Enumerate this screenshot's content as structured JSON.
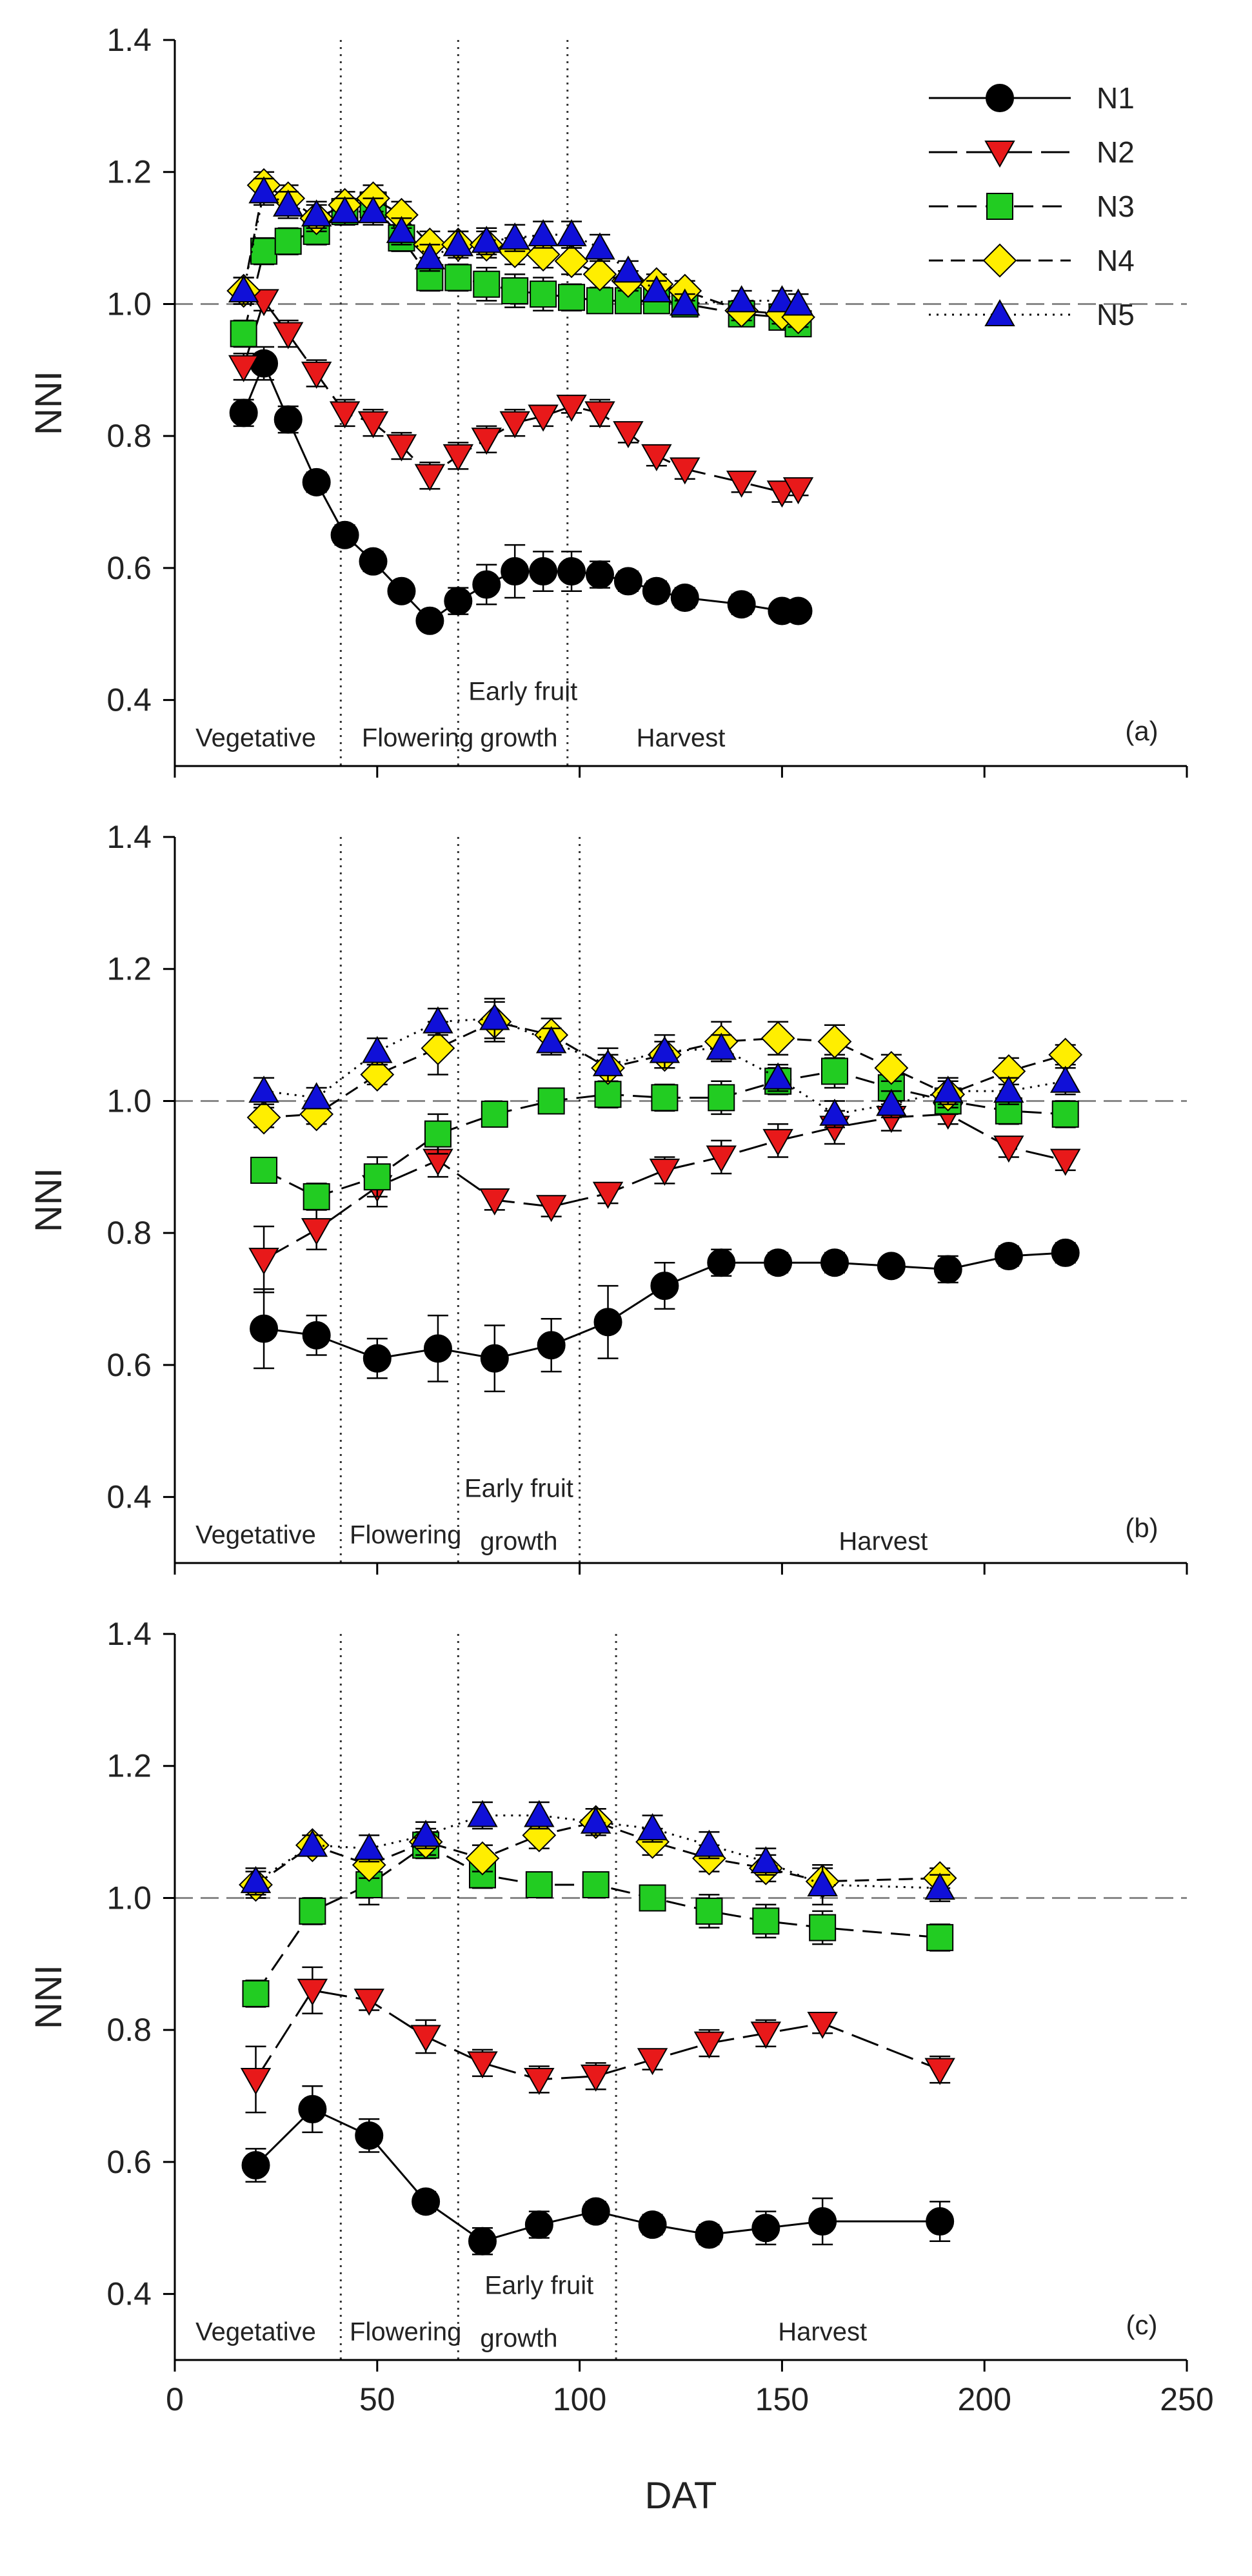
{
  "chart_data": {
    "type": "scatter",
    "title": "",
    "xlabel": "DAT",
    "ylabel": "NNI",
    "xlim": [
      0,
      250
    ],
    "xticks": [
      0,
      50,
      100,
      150,
      200,
      250
    ],
    "x_tick_labels": [
      "0",
      "50",
      "100",
      "150",
      "200",
      "250"
    ],
    "ylim": [
      0.3,
      1.4
    ],
    "yticks": [
      0.4,
      0.6,
      0.8,
      1.0,
      1.2,
      1.4
    ],
    "y_tick_labels": [
      "0.4",
      "0.6",
      "0.8",
      "1.0",
      "1.2",
      "1.4"
    ],
    "reference_line": 1.0,
    "legend": {
      "placement": "top-right",
      "entries": [
        {
          "name": "N1",
          "marker": "circle",
          "color": "#000000",
          "dash": "solid"
        },
        {
          "name": "N2",
          "marker": "triangle-down",
          "color": "#e8191a",
          "dash": "long-dash"
        },
        {
          "name": "N3",
          "marker": "square",
          "color": "#22cc22",
          "dash": "medium-dash"
        },
        {
          "name": "N4",
          "marker": "diamond",
          "color": "#ffee00",
          "dash": "dash"
        },
        {
          "name": "N5",
          "marker": "triangle-up",
          "color": "#1010d8",
          "dash": "dot"
        }
      ]
    },
    "panels": [
      {
        "label": "(a)",
        "phase_boundaries": [
          41,
          70,
          97
        ],
        "phase_labels": [
          {
            "text": "Vegetative",
            "x": 20,
            "y": 0.33
          },
          {
            "text": "Flowering",
            "x": 60,
            "y": 0.33
          },
          {
            "text": "growth",
            "x": 85,
            "y": 0.33
          },
          {
            "text": "Early fruit",
            "x": 86,
            "y": 0.4
          },
          {
            "text": "Harvest",
            "x": 125,
            "y": 0.33
          }
        ],
        "series": [
          {
            "name": "N1",
            "x": [
              17,
              22,
              28,
              35,
              42,
              49,
              56,
              63,
              70,
              77,
              84,
              91,
              98,
              105,
              112,
              119,
              126,
              140,
              150,
              154
            ],
            "y": [
              0.835,
              0.91,
              0.825,
              0.73,
              0.65,
              0.61,
              0.565,
              0.52,
              0.55,
              0.575,
              0.595,
              0.595,
              0.595,
              0.59,
              0.58,
              0.565,
              0.555,
              0.545,
              0.535,
              0.535
            ],
            "err": [
              0.02,
              0.025,
              0.02,
              0.015,
              0.015,
              0.015,
              0.01,
              0.01,
              0.02,
              0.03,
              0.04,
              0.03,
              0.03,
              0.02,
              0.015,
              0.015,
              0.015,
              0.015,
              0.01,
              0.01
            ]
          },
          {
            "name": "N2",
            "x": [
              17,
              22,
              28,
              35,
              42,
              49,
              56,
              63,
              70,
              77,
              84,
              91,
              98,
              105,
              112,
              119,
              126,
              140,
              150,
              154
            ],
            "y": [
              0.905,
              1.005,
              0.955,
              0.895,
              0.835,
              0.82,
              0.785,
              0.74,
              0.77,
              0.795,
              0.82,
              0.83,
              0.845,
              0.835,
              0.805,
              0.77,
              0.75,
              0.73,
              0.715,
              0.72
            ],
            "err": [
              0.02,
              0.015,
              0.02,
              0.02,
              0.02,
              0.02,
              0.02,
              0.02,
              0.02,
              0.02,
              0.02,
              0.015,
              0.01,
              0.02,
              0.015,
              0.015,
              0.015,
              0.015,
              0.015,
              0.01
            ]
          },
          {
            "name": "N3",
            "x": [
              17,
              22,
              28,
              35,
              42,
              49,
              56,
              63,
              70,
              77,
              84,
              91,
              98,
              105,
              112,
              119,
              126,
              140,
              150,
              154
            ],
            "y": [
              0.955,
              1.08,
              1.095,
              1.11,
              1.14,
              1.15,
              1.1,
              1.04,
              1.04,
              1.03,
              1.02,
              1.015,
              1.01,
              1.005,
              1.005,
              1.005,
              1.0,
              0.985,
              0.98,
              0.97
            ],
            "err": [
              0.02,
              0.02,
              0.02,
              0.02,
              0.02,
              0.02,
              0.02,
              0.02,
              0.02,
              0.025,
              0.025,
              0.025,
              0.02,
              0.015,
              0.015,
              0.015,
              0.015,
              0.015,
              0.015,
              0.015
            ]
          },
          {
            "name": "N4",
            "x": [
              17,
              22,
              28,
              35,
              42,
              49,
              56,
              63,
              70,
              77,
              84,
              91,
              98,
              105,
              112,
              119,
              126,
              140,
              150,
              154
            ],
            "y": [
              1.02,
              1.18,
              1.16,
              1.13,
              1.15,
              1.16,
              1.135,
              1.09,
              1.09,
              1.09,
              1.08,
              1.075,
              1.065,
              1.045,
              1.035,
              1.03,
              1.02,
              0.99,
              0.985,
              0.98
            ],
            "err": [
              0.02,
              0.02,
              0.02,
              0.02,
              0.02,
              0.02,
              0.02,
              0.02,
              0.02,
              0.02,
              0.02,
              0.02,
              0.02,
              0.02,
              0.015,
              0.015,
              0.015,
              0.015,
              0.015,
              0.015
            ]
          },
          {
            "name": "N5",
            "x": [
              17,
              22,
              28,
              35,
              42,
              49,
              56,
              63,
              70,
              77,
              84,
              91,
              98,
              105,
              112,
              119,
              126,
              140,
              150,
              154
            ],
            "y": [
              1.02,
              1.17,
              1.15,
              1.135,
              1.14,
              1.14,
              1.11,
              1.07,
              1.09,
              1.095,
              1.1,
              1.105,
              1.105,
              1.085,
              1.05,
              1.02,
              1.0,
              1.005,
              1.005,
              1.0
            ],
            "err": [
              0.02,
              0.02,
              0.02,
              0.02,
              0.02,
              0.02,
              0.02,
              0.02,
              0.02,
              0.02,
              0.02,
              0.02,
              0.02,
              0.02,
              0.015,
              0.015,
              0.015,
              0.015,
              0.015,
              0.015
            ]
          }
        ]
      },
      {
        "label": "(b)",
        "phase_boundaries": [
          41,
          70,
          100
        ],
        "phase_labels": [
          {
            "text": "Vegetative",
            "x": 20,
            "y": 0.33
          },
          {
            "text": "Flowering",
            "x": 57,
            "y": 0.33
          },
          {
            "text": "growth",
            "x": 85,
            "y": 0.32
          },
          {
            "text": "Early fruit",
            "x": 85,
            "y": 0.4
          },
          {
            "text": "Harvest",
            "x": 175,
            "y": 0.32
          }
        ],
        "series": [
          {
            "name": "N1",
            "x": [
              22,
              35,
              50,
              65,
              79,
              93,
              107,
              121,
              135,
              149,
              163,
              177,
              191,
              206,
              220
            ],
            "y": [
              0.655,
              0.645,
              0.61,
              0.625,
              0.61,
              0.63,
              0.665,
              0.72,
              0.755,
              0.755,
              0.755,
              0.75,
              0.745,
              0.765,
              0.77
            ],
            "err": [
              0.06,
              0.03,
              0.03,
              0.05,
              0.05,
              0.04,
              0.055,
              0.035,
              0.02,
              0.015,
              0.015,
              0.01,
              0.02,
              0.015,
              0.015
            ]
          },
          {
            "name": "N2",
            "x": [
              22,
              35,
              50,
              65,
              79,
              93,
              107,
              121,
              135,
              149,
              163,
              177,
              191,
              206,
              220
            ],
            "y": [
              0.76,
              0.805,
              0.87,
              0.91,
              0.85,
              0.84,
              0.86,
              0.895,
              0.915,
              0.94,
              0.96,
              0.975,
              0.98,
              0.93,
              0.91
            ],
            "err": [
              0.05,
              0.03,
              0.03,
              0.025,
              0.015,
              0.015,
              0.015,
              0.02,
              0.025,
              0.025,
              0.025,
              0.02,
              0.015,
              0.015,
              0.015
            ]
          },
          {
            "name": "N3",
            "x": [
              22,
              35,
              50,
              65,
              79,
              93,
              107,
              121,
              135,
              149,
              163,
              177,
              191,
              206,
              220
            ],
            "y": [
              0.895,
              0.855,
              0.885,
              0.95,
              0.98,
              1.0,
              1.01,
              1.005,
              1.005,
              1.03,
              1.045,
              1.02,
              1.0,
              0.985,
              0.98
            ],
            "err": [
              0.015,
              0.02,
              0.03,
              0.03,
              0.015,
              0.015,
              0.02,
              0.02,
              0.025,
              0.02,
              0.025,
              0.02,
              0.02,
              0.02,
              0.02
            ]
          },
          {
            "name": "N4",
            "x": [
              22,
              35,
              50,
              65,
              79,
              93,
              107,
              121,
              135,
              149,
              163,
              177,
              191,
              206,
              220
            ],
            "y": [
              0.975,
              0.98,
              1.04,
              1.08,
              1.12,
              1.1,
              1.05,
              1.07,
              1.09,
              1.095,
              1.09,
              1.05,
              1.01,
              1.045,
              1.07
            ],
            "err": [
              0.015,
              0.015,
              0.015,
              0.04,
              0.03,
              0.025,
              0.02,
              0.02,
              0.03,
              0.025,
              0.025,
              0.02,
              0.02,
              0.02,
              0.015
            ]
          },
          {
            "name": "N5",
            "x": [
              22,
              35,
              50,
              65,
              79,
              93,
              107,
              121,
              135,
              149,
              163,
              177,
              191,
              206,
              220
            ],
            "y": [
              1.015,
              1.005,
              1.075,
              1.12,
              1.125,
              1.09,
              1.055,
              1.075,
              1.08,
              1.035,
              0.98,
              0.995,
              1.015,
              1.015,
              1.03
            ],
            "err": [
              0.02,
              0.015,
              0.02,
              0.02,
              0.03,
              0.02,
              0.025,
              0.025,
              0.02,
              0.02,
              0.02,
              0.02,
              0.02,
              0.02,
              0.02
            ]
          }
        ]
      },
      {
        "label": "(c)",
        "phase_boundaries": [
          41,
          70,
          109
        ],
        "phase_labels": [
          {
            "text": "Vegetative",
            "x": 20,
            "y": 0.33
          },
          {
            "text": "Flowering",
            "x": 57,
            "y": 0.33
          },
          {
            "text": "growth",
            "x": 85,
            "y": 0.32
          },
          {
            "text": "Early fruit",
            "x": 90,
            "y": 0.4
          },
          {
            "text": "Harvest",
            "x": 160,
            "y": 0.33
          }
        ],
        "series": [
          {
            "name": "N1",
            "x": [
              20,
              34,
              48,
              62,
              76,
              90,
              104,
              118,
              132,
              146,
              160,
              189
            ],
            "y": [
              0.595,
              0.68,
              0.64,
              0.54,
              0.48,
              0.505,
              0.525,
              0.505,
              0.49,
              0.5,
              0.51,
              0.51
            ],
            "err": [
              0.025,
              0.035,
              0.025,
              0.015,
              0.02,
              0.02,
              0.015,
              0.015,
              0.015,
              0.025,
              0.035,
              0.03
            ]
          },
          {
            "name": "N2",
            "x": [
              20,
              34,
              48,
              62,
              76,
              90,
              104,
              118,
              132,
              146,
              160,
              189
            ],
            "y": [
              0.725,
              0.86,
              0.845,
              0.79,
              0.75,
              0.725,
              0.73,
              0.755,
              0.78,
              0.795,
              0.81,
              0.74
            ],
            "err": [
              0.05,
              0.035,
              0.015,
              0.025,
              0.02,
              0.02,
              0.02,
              0.015,
              0.02,
              0.02,
              0.015,
              0.02
            ]
          },
          {
            "name": "N3",
            "x": [
              20,
              34,
              48,
              62,
              76,
              90,
              104,
              118,
              132,
              146,
              160,
              189
            ],
            "y": [
              0.855,
              0.98,
              1.02,
              1.08,
              1.035,
              1.02,
              1.02,
              1.0,
              0.98,
              0.965,
              0.955,
              0.94
            ],
            "err": [
              0.02,
              0.02,
              0.03,
              0.02,
              0.02,
              0.015,
              0.015,
              0.015,
              0.025,
              0.025,
              0.025,
              0.02
            ]
          },
          {
            "name": "N4",
            "x": [
              20,
              34,
              48,
              62,
              76,
              90,
              104,
              118,
              132,
              146,
              160,
              189
            ],
            "y": [
              1.02,
              1.08,
              1.05,
              1.085,
              1.06,
              1.095,
              1.115,
              1.085,
              1.06,
              1.045,
              1.025,
              1.03
            ],
            "err": [
              0.02,
              0.015,
              0.02,
              0.02,
              0.02,
              0.02,
              0.02,
              0.02,
              0.02,
              0.02,
              0.02,
              0.015
            ]
          },
          {
            "name": "N5",
            "x": [
              20,
              34,
              48,
              62,
              76,
              90,
              104,
              118,
              132,
              146,
              160,
              189
            ],
            "y": [
              1.025,
              1.08,
              1.075,
              1.095,
              1.125,
              1.125,
              1.115,
              1.105,
              1.08,
              1.055,
              1.02,
              1.015
            ],
            "err": [
              0.02,
              0.015,
              0.02,
              0.02,
              0.02,
              0.02,
              0.02,
              0.02,
              0.02,
              0.02,
              0.03,
              0.02
            ]
          }
        ]
      }
    ]
  }
}
